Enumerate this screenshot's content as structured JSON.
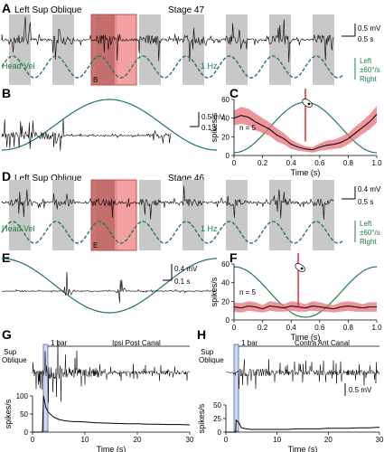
{
  "colors": {
    "trace": "#000000",
    "sine": "#1e7d4a",
    "band": "#c8c8c8",
    "highlight": "#f08080",
    "highlight_dark": "#b05050",
    "sem": "#e8707a",
    "redline": "#e0202a",
    "stim_box": "#4a6fb0"
  },
  "panels": {
    "A": {
      "label": "A",
      "title": "Left Sup Oblique",
      "stage": "Stage 47",
      "scale_mv": "0.5 mV",
      "scale_s": "0.5 s",
      "head_vel": "Head Vel",
      "freq": "1 Hz",
      "left": "Left",
      "amp": "±60°/s",
      "right": "Right",
      "box_label": "B"
    },
    "B": {
      "label": "B",
      "scale_mv": "0.5 mV",
      "scale_s": "0.1 s"
    },
    "C": {
      "label": "C",
      "n": "n = 5"
    },
    "D": {
      "label": "D",
      "title": "Left Sup Oblique",
      "stage": "Stage 46",
      "scale_mv": "0.4 mV",
      "scale_s": "0.5 s",
      "head_vel": "Head Vel",
      "freq": "1 Hz",
      "left": "Left",
      "amp": "±60°/s",
      "right": "Right",
      "box_label": "E"
    },
    "E": {
      "label": "E",
      "scale_mv": "0.4 mV",
      "scale_s": "0.1 s"
    },
    "F": {
      "label": "F",
      "n": "n = 5"
    },
    "G": {
      "label": "G",
      "muscle": "Sup\nOblique",
      "muscle_l1": "Sup",
      "muscle_l2": "Oblique",
      "stim": "1 bar",
      "canal": "Ipsi Post Canal"
    },
    "H": {
      "label": "H",
      "muscle_l1": "Sup",
      "muscle_l2": "Oblique",
      "stim": "1 bar",
      "canal": "Contra Ant Canal",
      "scale_mv": "0.5 mV"
    }
  },
  "chart_data": [
    {
      "panel": "C",
      "type": "line",
      "ylabel": "spikes/s",
      "xlabel": "Time (s)",
      "xlim": [
        0,
        1
      ],
      "ylim": [
        0,
        60
      ],
      "xticks": [
        "0",
        "0.2",
        "0.4",
        "0.6",
        "0.8",
        "1.0"
      ],
      "yticks": [
        "0",
        "20",
        "40",
        "60"
      ],
      "x": [
        0.0,
        0.05,
        0.1,
        0.15,
        0.2,
        0.25,
        0.3,
        0.35,
        0.4,
        0.45,
        0.5,
        0.55,
        0.6,
        0.65,
        0.7,
        0.75,
        0.8,
        0.85,
        0.9,
        0.95,
        1.0
      ],
      "series": [
        {
          "name": "",
          "values": [
            40,
            43,
            41,
            36,
            32,
            28,
            22,
            18,
            12,
            9,
            7,
            6,
            9,
            11,
            12,
            14,
            18,
            24,
            30,
            36,
            44
          ]
        }
      ],
      "sem": [
        8,
        9,
        9,
        9,
        8,
        7,
        7,
        6,
        5,
        4,
        3,
        3,
        4,
        5,
        5,
        6,
        6,
        7,
        7,
        8,
        9
      ],
      "sine_note": "head velocity cycle overlay",
      "red_line_x": 0.5
    },
    {
      "panel": "F",
      "type": "line",
      "ylabel": "spikes/s",
      "xlabel": "Time (s)",
      "xlim": [
        0,
        1
      ],
      "ylim": [
        0,
        60
      ],
      "xticks": [
        "0",
        "0.2",
        "0.4",
        "0.6",
        "0.8",
        "1.0"
      ],
      "yticks": [
        "0",
        "20",
        "40",
        "60"
      ],
      "x": [
        0.0,
        0.05,
        0.1,
        0.15,
        0.2,
        0.25,
        0.3,
        0.35,
        0.4,
        0.45,
        0.5,
        0.55,
        0.6,
        0.65,
        0.7,
        0.75,
        0.8,
        0.85,
        0.9,
        0.95,
        1.0
      ],
      "series": [
        {
          "name": "",
          "values": [
            14,
            13,
            15,
            14,
            12,
            15,
            14,
            13,
            15,
            14,
            13,
            15,
            14,
            13,
            12,
            14,
            15,
            14,
            13,
            14,
            14
          ]
        }
      ],
      "sem": [
        5,
        5,
        5,
        5,
        4,
        5,
        5,
        4,
        5,
        5,
        4,
        5,
        5,
        4,
        4,
        5,
        5,
        5,
        4,
        5,
        5
      ],
      "red_line_x": 0.45
    },
    {
      "panel": "G",
      "type": "line",
      "ylabel": "spikes/s",
      "xlabel": "Time (s)",
      "xlim": [
        0,
        30
      ],
      "ylim": [
        0,
        100
      ],
      "xticks": [
        "0",
        "10",
        "20",
        "30"
      ],
      "yticks": [
        "0",
        "50",
        "100"
      ],
      "x": [
        0,
        1,
        1.9,
        2.1,
        2.5,
        3,
        4,
        5,
        6,
        7,
        8,
        9,
        10,
        12,
        14,
        16,
        18,
        20,
        22,
        24,
        26,
        28,
        30
      ],
      "series": [
        {
          "name": "",
          "values": [
            0,
            0,
            0,
            100,
            70,
            55,
            42,
            35,
            32,
            30,
            29,
            29,
            28,
            26,
            25,
            24,
            23,
            23,
            22,
            22,
            21,
            21,
            20
          ]
        }
      ]
    },
    {
      "panel": "H",
      "type": "line",
      "ylabel": "spikes/s",
      "xlabel": "Time (s)",
      "xlim": [
        0,
        30
      ],
      "ylim": [
        0,
        50
      ],
      "xticks": [
        "0",
        "10",
        "20",
        "30"
      ],
      "yticks": [
        "0",
        "25",
        "50"
      ],
      "x": [
        0,
        1,
        1.9,
        2.0,
        2.5,
        3,
        4,
        5,
        6,
        7,
        8,
        10,
        12,
        14,
        16,
        18,
        20,
        22,
        24,
        26,
        28,
        30
      ],
      "series": [
        {
          "name": "",
          "values": [
            0,
            0,
            0,
            22,
            18,
            8,
            6,
            5,
            5,
            5,
            5,
            5,
            5,
            6,
            6,
            6,
            7,
            7,
            7,
            8,
            8,
            9
          ]
        }
      ]
    }
  ]
}
